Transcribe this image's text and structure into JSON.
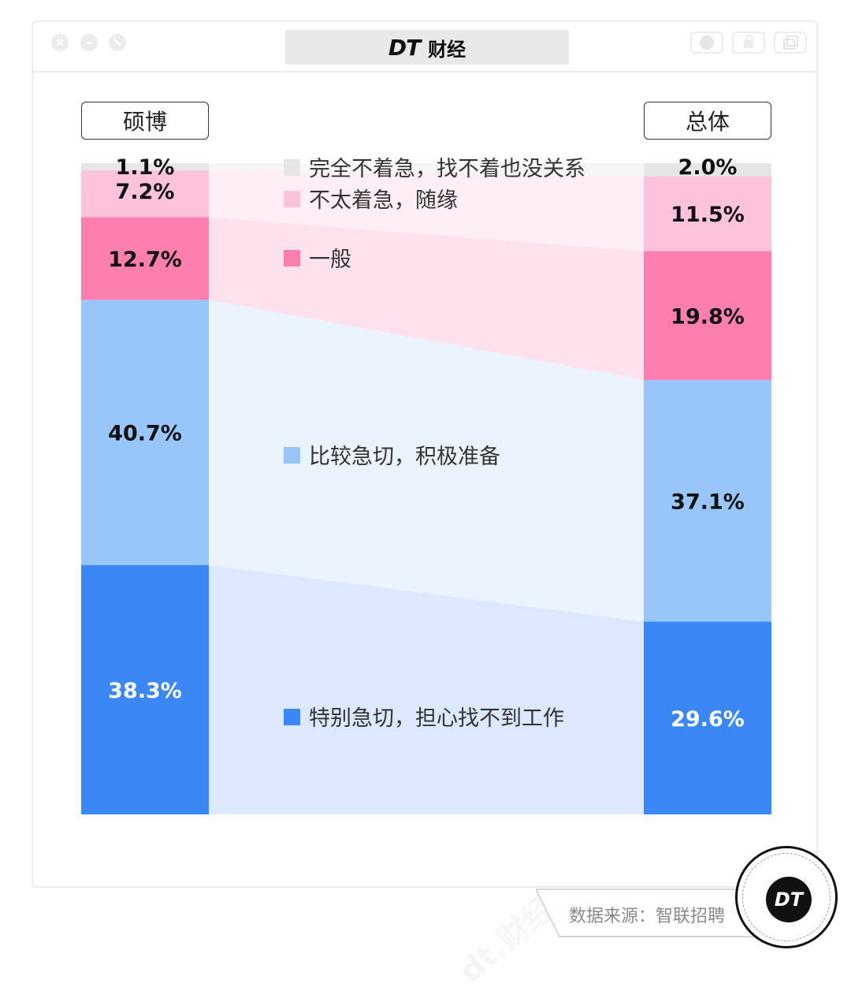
{
  "window": {
    "title_logo": "DT",
    "title_name": "财经"
  },
  "groups": {
    "left": "硕博",
    "right": "总体"
  },
  "chart_data": {
    "type": "bar",
    "stacked": true,
    "categories": [
      "硕博",
      "总体"
    ],
    "series": [
      {
        "name": "完全不着急，找不着也没关系",
        "values": [
          1.1,
          2.0
        ],
        "labels": [
          "1.1%",
          "2.0%"
        ],
        "color": "#e6e6e6",
        "label_color": "#111111"
      },
      {
        "name": "不太着急，随缘",
        "values": [
          7.2,
          11.5
        ],
        "labels": [
          "7.2%",
          "11.5%"
        ],
        "color": "#fdc3dd",
        "label_color": "#111111"
      },
      {
        "name": "一般",
        "values": [
          12.7,
          19.8
        ],
        "labels": [
          "12.7%",
          "19.8%"
        ],
        "color": "#fc7fae",
        "label_color": "#111111"
      },
      {
        "name": "比较急切，积极准备",
        "values": [
          40.7,
          37.1
        ],
        "labels": [
          "40.7%",
          "37.1%"
        ],
        "color": "#98c6fa",
        "label_color": "#111111"
      },
      {
        "name": "特别急切，担心找不到工作",
        "values": [
          38.3,
          29.6
        ],
        "labels": [
          "38.3%",
          "29.6%"
        ],
        "color": "#3b88f5",
        "label_color": "#ffffff"
      }
    ],
    "band_colors": [
      "#f6f6f6",
      "#ffeef5",
      "#fde2ee",
      "#eaf3fe",
      "#dbe8fd"
    ]
  },
  "source": "数据来源：智联招聘",
  "badge": "DT",
  "watermark": "dt.财经"
}
